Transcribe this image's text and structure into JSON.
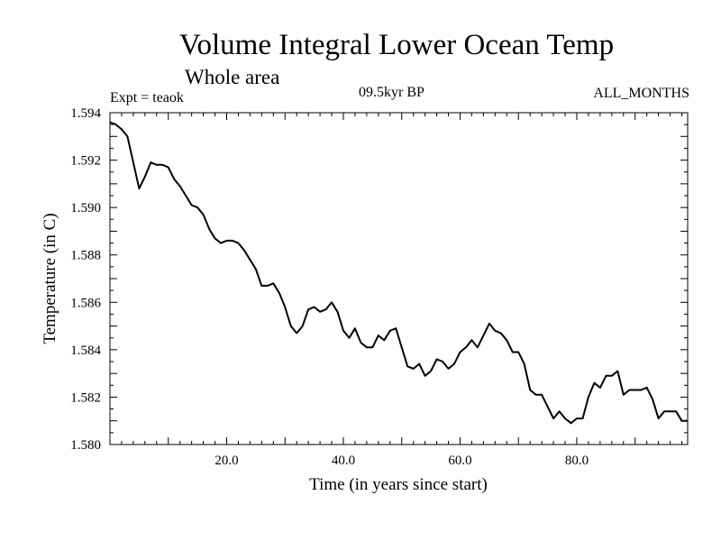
{
  "header": {
    "title": "Volume Integral Lower Ocean Temp",
    "subtitle": "Whole area",
    "expt": "Expt = teaok",
    "period": "09.5kyr BP",
    "months": "ALL_MONTHS"
  },
  "chart_data": {
    "type": "line",
    "title": "Volume Integral Lower Ocean Temp",
    "subtitle": "Whole area",
    "xlabel": "Time (in years since start)",
    "ylabel": "Temperature (in C)",
    "xlim": [
      0,
      99
    ],
    "ylim": [
      1.58,
      1.594
    ],
    "xticks": [
      20,
      40,
      60,
      80
    ],
    "xtick_labels": [
      "20.0",
      "40.0",
      "60.0",
      "80.0"
    ],
    "yticks": [
      1.58,
      1.582,
      1.584,
      1.586,
      1.588,
      1.59,
      1.592,
      1.594
    ],
    "ytick_labels": [
      "1.580",
      "1.582",
      "1.584",
      "1.586",
      "1.588",
      "1.590",
      "1.592",
      "1.594"
    ],
    "series": [
      {
        "name": "Lower Ocean Temp",
        "color": "#000000",
        "x": [
          0,
          1,
          2,
          3,
          4,
          5,
          6,
          7,
          8,
          9,
          10,
          11,
          12,
          13,
          14,
          15,
          16,
          17,
          18,
          19,
          20,
          21,
          22,
          23,
          24,
          25,
          26,
          27,
          28,
          29,
          30,
          31,
          32,
          33,
          34,
          35,
          36,
          37,
          38,
          39,
          40,
          41,
          42,
          43,
          44,
          45,
          46,
          47,
          48,
          49,
          50,
          51,
          52,
          53,
          54,
          55,
          56,
          57,
          58,
          59,
          60,
          61,
          62,
          63,
          64,
          65,
          66,
          67,
          68,
          69,
          70,
          71,
          72,
          73,
          74,
          75,
          76,
          77,
          78,
          79,
          80,
          81,
          82,
          83,
          84,
          85,
          86,
          87,
          88,
          89,
          90,
          91,
          92,
          93,
          94,
          95,
          96,
          97,
          98,
          99
        ],
        "values": [
          1.5936,
          1.5935,
          1.5933,
          1.593,
          1.5919,
          1.5908,
          1.5913,
          1.5919,
          1.5918,
          1.5918,
          1.5917,
          1.5912,
          1.5909,
          1.5905,
          1.5901,
          1.59,
          1.5897,
          1.5891,
          1.5887,
          1.5885,
          1.5886,
          1.5886,
          1.5885,
          1.5882,
          1.5878,
          1.5874,
          1.5867,
          1.5867,
          1.5868,
          1.5864,
          1.5858,
          1.585,
          1.5847,
          1.585,
          1.5857,
          1.5858,
          1.5856,
          1.5857,
          1.586,
          1.5856,
          1.5848,
          1.5845,
          1.5849,
          1.5843,
          1.5841,
          1.5841,
          1.5846,
          1.5844,
          1.5848,
          1.5849,
          1.5841,
          1.5833,
          1.5832,
          1.5834,
          1.5829,
          1.5831,
          1.5836,
          1.5835,
          1.5832,
          1.5834,
          1.5839,
          1.5841,
          1.5844,
          1.5841,
          1.5846,
          1.5851,
          1.5848,
          1.5847,
          1.5844,
          1.5839,
          1.5839,
          1.5834,
          1.5823,
          1.5821,
          1.5821,
          1.5816,
          1.5811,
          1.5814,
          1.5811,
          1.5809,
          1.5811,
          1.5811,
          1.582,
          1.5826,
          1.5824,
          1.5829,
          1.5829,
          1.5831,
          1.5821,
          1.5823,
          1.5823,
          1.5823,
          1.5824,
          1.5819,
          1.5811,
          1.5814,
          1.5814,
          1.5814,
          1.581,
          1.581
        ]
      }
    ]
  }
}
